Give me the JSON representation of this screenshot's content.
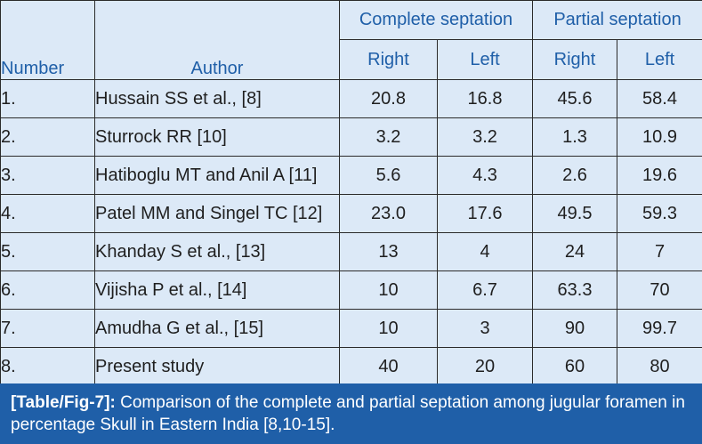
{
  "table": {
    "header": {
      "number": "Number",
      "author": "Author",
      "group_complete": "Complete septation",
      "group_partial": "Partial septation",
      "right": "Right",
      "left": "Left"
    },
    "rows": [
      {
        "number": "1.",
        "author": "Hussain SS et al., [8]",
        "complete_right": "20.8",
        "complete_left": "16.8",
        "partial_right": "45.6",
        "partial_left": "58.4"
      },
      {
        "number": "2.",
        "author": "Sturrock RR [10]",
        "complete_right": "3.2",
        "complete_left": "3.2",
        "partial_right": "1.3",
        "partial_left": "10.9"
      },
      {
        "number": "3.",
        "author": "Hatiboglu MT and Anil A [11]",
        "complete_right": "5.6",
        "complete_left": "4.3",
        "partial_right": "2.6",
        "partial_left": "19.6"
      },
      {
        "number": "4.",
        "author": "Patel MM and Singel TC [12]",
        "complete_right": "23.0",
        "complete_left": "17.6",
        "partial_right": "49.5",
        "partial_left": "59.3"
      },
      {
        "number": "5.",
        "author": "Khanday S et al., [13]",
        "complete_right": "13",
        "complete_left": "4",
        "partial_right": "24",
        "partial_left": "7"
      },
      {
        "number": "6.",
        "author": "Vijisha P et al., [14]",
        "complete_right": "10",
        "complete_left": "6.7",
        "partial_right": "63.3",
        "partial_left": "70"
      },
      {
        "number": "7.",
        "author": "Amudha G et al., [15]",
        "complete_right": "10",
        "complete_left": "3",
        "partial_right": "90",
        "partial_left": "99.7"
      },
      {
        "number": "8.",
        "author": "Present study",
        "complete_right": "40",
        "complete_left": "20",
        "partial_right": "60",
        "partial_left": "80"
      }
    ]
  },
  "caption": {
    "label": "[Table/Fig-7]:",
    "text": " Comparison of the complete and partial septation among jugular foramen in percentage Skull in Eastern India [8,10-15]."
  },
  "colors": {
    "header_text": "#1f5fa8",
    "row_background": "#dce9f7",
    "caption_background": "#1f5fa8",
    "caption_text": "#ffffff"
  }
}
